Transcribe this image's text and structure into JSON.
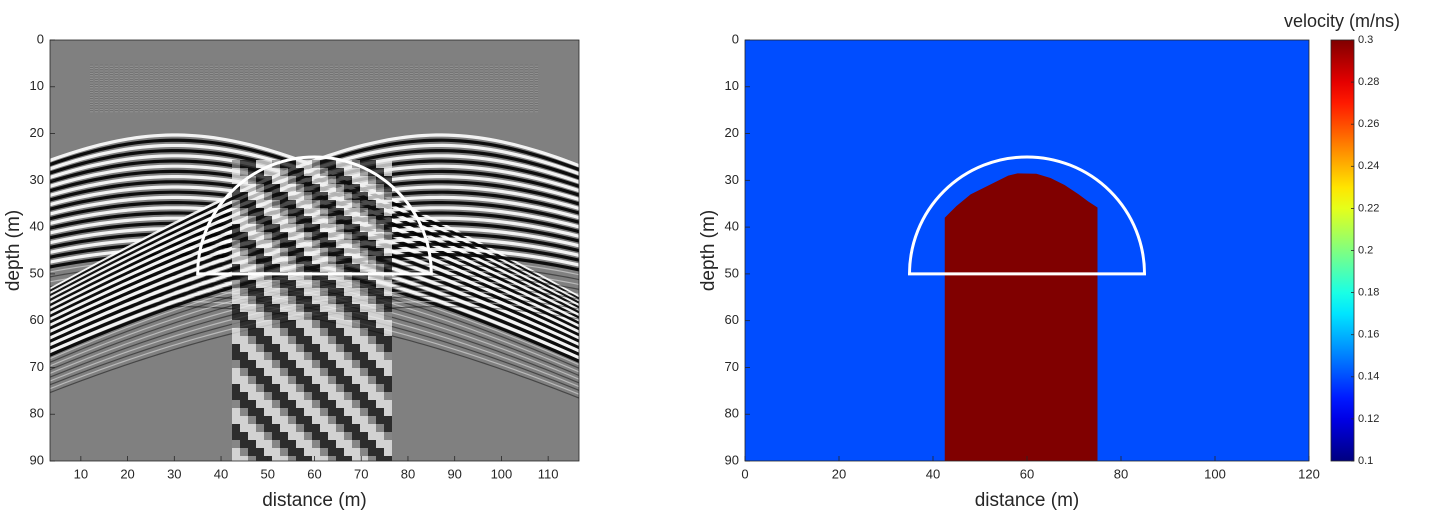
{
  "chart_data": [
    {
      "type": "image",
      "xlabel": "distance (m)",
      "ylabel": "depth (m)",
      "xlim": [
        3.4,
        116.6
      ],
      "ylim": [
        0,
        90
      ],
      "y_reversed": true,
      "xticks": [
        10,
        20,
        30,
        40,
        50,
        60,
        70,
        80,
        90,
        100,
        110
      ],
      "yticks": [
        0,
        10,
        20,
        30,
        40,
        50,
        60,
        70,
        80,
        90
      ],
      "colormap": "gray",
      "semicircle": {
        "center": [
          60,
          50
        ],
        "radius": 25,
        "color": "#ffffff"
      }
    },
    {
      "type": "velocity_model",
      "xlabel": "distance (m)",
      "ylabel": "depth (m)",
      "xlim": [
        0,
        120
      ],
      "ylim": [
        0,
        90
      ],
      "y_reversed": true,
      "xticks": [
        0,
        20,
        40,
        60,
        80,
        100,
        120
      ],
      "yticks": [
        0,
        10,
        20,
        30,
        40,
        50,
        60,
        70,
        80,
        90
      ],
      "colormap": "jet",
      "background_velocity": 0.14,
      "body": {
        "velocity": 0.3,
        "x": [
          42.5,
          42.5,
          43,
          45,
          48,
          52,
          56,
          58,
          62,
          65,
          68,
          71,
          73,
          75,
          75
        ],
        "y": [
          90,
          38,
          37.5,
          35.5,
          33,
          31,
          29,
          28.5,
          28.6,
          29.5,
          31,
          33,
          34.5,
          35.8,
          90
        ]
      },
      "semicircle": {
        "center": [
          60,
          50
        ],
        "radius": 25,
        "color": "#ffffff"
      },
      "colorbar": {
        "label": "velocity (m/ns)",
        "clim": [
          0.1,
          0.3
        ],
        "ticks": [
          0.1,
          0.12,
          0.14,
          0.16,
          0.18,
          0.2,
          0.22,
          0.24,
          0.26,
          0.28,
          0.3
        ]
      }
    }
  ]
}
